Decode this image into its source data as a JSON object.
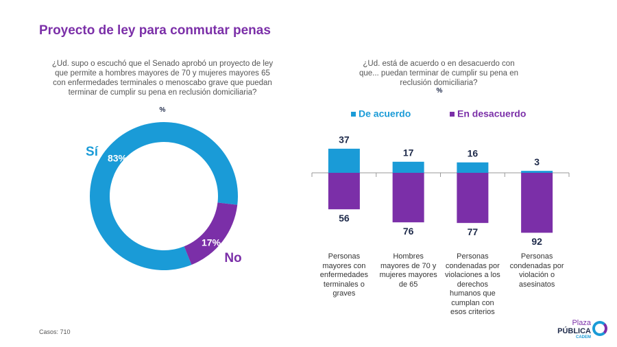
{
  "title": "Proyecto de ley para conmutar penas",
  "footnote": {
    "label": "Casos:",
    "value": "710"
  },
  "logo": {
    "line1": "Plaza",
    "line2": "PÚBLICA",
    "line3": "CADEM"
  },
  "chart_data": [
    {
      "type": "donut",
      "title": "¿Ud. supo o escuchó que el Senado aprobó un proyecto de ley que permite a hombres mayores de 70 y mujeres mayores 65 con enfermedades terminales o menoscabo grave que puedan terminar de cumplir su pena en reclusión domiciliaria?",
      "subtitle": "%",
      "categories": [
        "Sí",
        "No"
      ],
      "values": [
        83,
        17
      ],
      "value_labels": [
        "83%",
        "17%"
      ],
      "colors": [
        "#1a9bd7",
        "#7b2fa8"
      ]
    },
    {
      "type": "diverging_bar",
      "title": "¿Ud. está de acuerdo o en desacuerdo con que... puedan terminar de cumplir su pena en reclusión domiciliaria?",
      "subtitle": "%",
      "categories": [
        "Personas mayores con enfermedades terminales o graves",
        "Hombres mayores de 70 y mujeres mayores de 65",
        "Personas condenadas por violaciones a los derechos humanos que cumplan con esos criterios",
        "Personas condenadas por violación o asesinatos"
      ],
      "series": [
        {
          "name": "De acuerdo",
          "color": "#1a9bd7",
          "values": [
            37,
            17,
            16,
            3
          ]
        },
        {
          "name": "En desacuerdo",
          "color": "#7b2fa8",
          "values": [
            56,
            76,
            77,
            92
          ]
        }
      ]
    }
  ]
}
